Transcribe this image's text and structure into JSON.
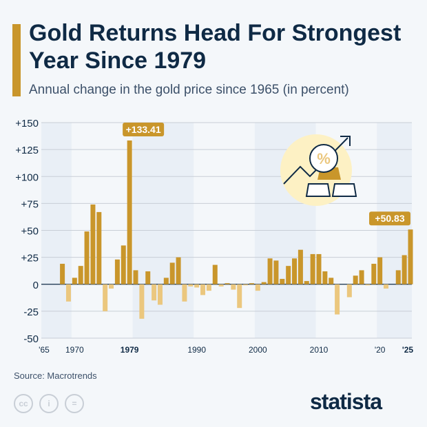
{
  "header": {
    "title": "Gold Returns Head For Strongest Year Since 1979",
    "subtitle": "Annual change in the gold price since 1965 (in percent)"
  },
  "footer": {
    "source": "Source: Macrotrends",
    "brand": "statista"
  },
  "chart_data": {
    "type": "bar",
    "title": "Gold Returns Head For Strongest Year Since 1979",
    "subtitle": "Annual change in the gold price since 1965 (in percent)",
    "ylim": [
      -50,
      150
    ],
    "xlim": [
      1965,
      2025
    ],
    "yticks": [
      150,
      125,
      100,
      75,
      50,
      25,
      0,
      -25,
      -50
    ],
    "ytick_labels": [
      "+150",
      "+125",
      "+100",
      "+75",
      "+50",
      "+25",
      "0",
      "-25",
      "-50"
    ],
    "xticks": [
      {
        "year": 1965,
        "label": "'65",
        "bold": false
      },
      {
        "year": 1970,
        "label": "1970",
        "bold": false
      },
      {
        "year": 1979,
        "label": "1979",
        "bold": true
      },
      {
        "year": 1990,
        "label": "1990",
        "bold": false
      },
      {
        "year": 2000,
        "label": "2000",
        "bold": false
      },
      {
        "year": 2010,
        "label": "2010",
        "bold": false
      },
      {
        "year": 2020,
        "label": "'20",
        "bold": false
      },
      {
        "year": 2025,
        "label": "'25",
        "bold": true
      }
    ],
    "shaded_bands": [
      [
        1965,
        1970
      ],
      [
        1980,
        1990
      ],
      [
        2000,
        2010
      ],
      [
        2020,
        2025
      ]
    ],
    "grid": true,
    "colors": {
      "positive": "#c9962b",
      "negative": "#ebc77e",
      "band": "#e9eff6"
    },
    "x": [
      1968,
      1969,
      1970,
      1971,
      1972,
      1973,
      1974,
      1975,
      1976,
      1977,
      1978,
      1979,
      1980,
      1981,
      1982,
      1983,
      1984,
      1985,
      1986,
      1987,
      1988,
      1989,
      1990,
      1991,
      1992,
      1993,
      1994,
      1995,
      1996,
      1997,
      1998,
      1999,
      2000,
      2001,
      2002,
      2003,
      2004,
      2005,
      2006,
      2007,
      2008,
      2009,
      2010,
      2011,
      2012,
      2013,
      2014,
      2015,
      2016,
      2017,
      2018,
      2019,
      2020,
      2021,
      2022,
      2023,
      2024,
      2025
    ],
    "values": [
      19,
      -16,
      6,
      17,
      49,
      74,
      67,
      -25,
      -4,
      23,
      36,
      133.41,
      13,
      -32,
      12,
      -15,
      -19,
      6,
      20,
      25,
      -16,
      -2,
      -3,
      -10,
      -6,
      18,
      -2,
      1,
      -5,
      -22,
      -1,
      1,
      -6,
      2,
      24,
      22,
      5,
      17,
      24,
      32,
      3,
      28,
      28,
      12,
      6,
      -28,
      0,
      -12,
      8,
      13,
      -1,
      19,
      25,
      -4,
      0,
      13,
      27,
      50.83
    ],
    "annotations": [
      {
        "year": 1979,
        "label": "+133.41"
      },
      {
        "year": 2025,
        "label": "+50.83"
      }
    ]
  }
}
